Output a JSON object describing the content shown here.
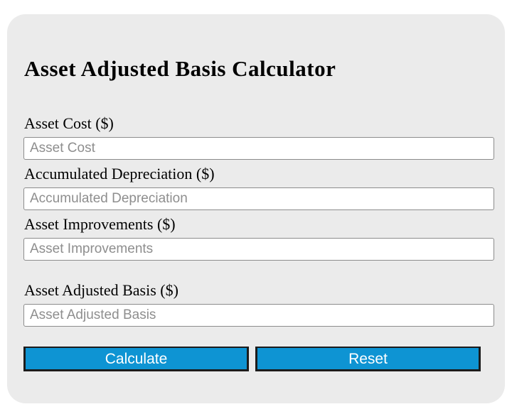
{
  "header": {
    "title": "Asset Adjusted Basis Calculator"
  },
  "form": {
    "fields": [
      {
        "label": "Asset Cost ($)",
        "placeholder": "Asset Cost",
        "value": ""
      },
      {
        "label": "Accumulated Depreciation ($)",
        "placeholder": "Accumulated Depreciation",
        "value": ""
      },
      {
        "label": "Asset Improvements ($)",
        "placeholder": "Asset Improvements",
        "value": ""
      }
    ],
    "result_field": {
      "label": "Asset Adjusted Basis ($)",
      "placeholder": "Asset Adjusted Basis",
      "value": ""
    },
    "buttons": {
      "calculate": "Calculate",
      "reset": "Reset"
    }
  },
  "colors": {
    "card_background": "#ebebeb",
    "page_background": "#ffffff",
    "button_blue": "#0e94d3",
    "button_border": "#1c1c1c",
    "button_text": "#ffffff",
    "placeholder_gray": "#8e8e8e",
    "input_border": "#8c8c8c",
    "label_text": "#000000"
  }
}
